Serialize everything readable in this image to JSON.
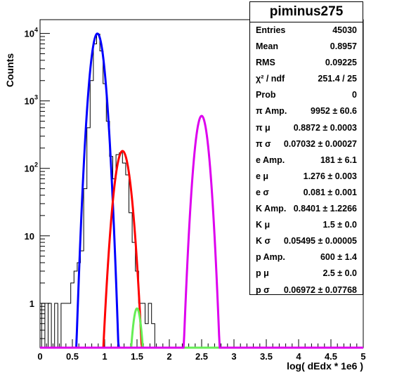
{
  "chart_data": {
    "type": "line",
    "title": "",
    "xlabel": "log( dEdx * 1e6 )",
    "ylabel": "Counts",
    "xlim": [
      0,
      5
    ],
    "ylog": true,
    "ylim": [
      0.22,
      16000
    ],
    "x_ticks": [
      "0",
      "0.5",
      "1",
      "1.5",
      "2",
      "2.5",
      "3",
      "3.5",
      "4",
      "4.5",
      "5"
    ],
    "y_ticks": [
      {
        "value": 1,
        "base": "1",
        "exp": ""
      },
      {
        "value": 10,
        "base": "10",
        "exp": ""
      },
      {
        "value": 100,
        "base": "10",
        "exp": "2"
      },
      {
        "value": 1000,
        "base": "10",
        "exp": "3"
      },
      {
        "value": 10000,
        "base": "10",
        "exp": "4"
      }
    ],
    "grid": false,
    "histogram": {
      "bin_width": 0.05,
      "bins": [
        [
          0.05,
          1
        ],
        [
          0.1,
          0
        ],
        [
          0.15,
          1
        ],
        [
          0.2,
          0
        ],
        [
          0.25,
          1
        ],
        [
          0.3,
          0
        ],
        [
          0.35,
          1
        ],
        [
          0.4,
          1
        ],
        [
          0.45,
          1
        ],
        [
          0.5,
          2
        ],
        [
          0.55,
          3
        ],
        [
          0.6,
          4
        ],
        [
          0.65,
          6
        ],
        [
          0.7,
          50
        ],
        [
          0.75,
          400
        ],
        [
          0.8,
          2000
        ],
        [
          0.85,
          7000
        ],
        [
          0.9,
          9800
        ],
        [
          0.95,
          5500
        ],
        [
          1.0,
          1800
        ],
        [
          1.05,
          500
        ],
        [
          1.1,
          150
        ],
        [
          1.15,
          70
        ],
        [
          1.2,
          160
        ],
        [
          1.25,
          170
        ],
        [
          1.3,
          120
        ],
        [
          1.35,
          80
        ],
        [
          1.4,
          22
        ],
        [
          1.45,
          8
        ],
        [
          1.5,
          3
        ],
        [
          1.55,
          1
        ],
        [
          1.6,
          1
        ],
        [
          1.65,
          0.5
        ],
        [
          1.7,
          1
        ],
        [
          1.75,
          0.5
        ]
      ]
    },
    "series": [
      {
        "color": "#0000ff",
        "gauss": {
          "amp": 9952,
          "mu": 0.8872,
          "sigma": 0.07032
        }
      },
      {
        "color": "#ff0000",
        "gauss": {
          "amp": 181,
          "mu": 1.276,
          "sigma": 0.081
        }
      },
      {
        "color": "#66ee55",
        "gauss": {
          "amp": 0.8401,
          "mu": 1.5,
          "sigma": 0.05495
        }
      },
      {
        "color": "#dd00ee",
        "gauss": {
          "amp": 600,
          "mu": 2.5,
          "sigma": 0.06972
        }
      }
    ]
  },
  "stats": {
    "title": "piminus275",
    "rows": [
      {
        "label": "Entries",
        "value": "45030"
      },
      {
        "label": "Mean",
        "value": "0.8957"
      },
      {
        "label": "RMS",
        "value": "0.09225"
      },
      {
        "label": "χ² / ndf",
        "value": "251.4 / 25"
      },
      {
        "label": "Prob",
        "value": "0"
      },
      {
        "label": "π Amp.",
        "value": "9952 ± 60.6"
      },
      {
        "label": "π μ",
        "value": "0.8872 ± 0.0003"
      },
      {
        "label": "π σ",
        "value": "0.07032 ± 0.00027"
      },
      {
        "label": "e Amp.",
        "value": "181 ± 6.1"
      },
      {
        "label": "e μ",
        "value": "1.276 ± 0.003"
      },
      {
        "label": "e σ",
        "value": "0.081 ± 0.001"
      },
      {
        "label": "K Amp.",
        "value": "0.8401 ± 1.2266"
      },
      {
        "label": "K μ",
        "value": "1.5 ± 0.0"
      },
      {
        "label": "K σ",
        "value": "0.05495 ± 0.00005"
      },
      {
        "label": "p Amp.",
        "value": "600 ± 1.4"
      },
      {
        "label": "p μ",
        "value": "2.5 ± 0.0"
      },
      {
        "label": "p σ",
        "value": "0.06972 ± 0.07768"
      }
    ]
  }
}
